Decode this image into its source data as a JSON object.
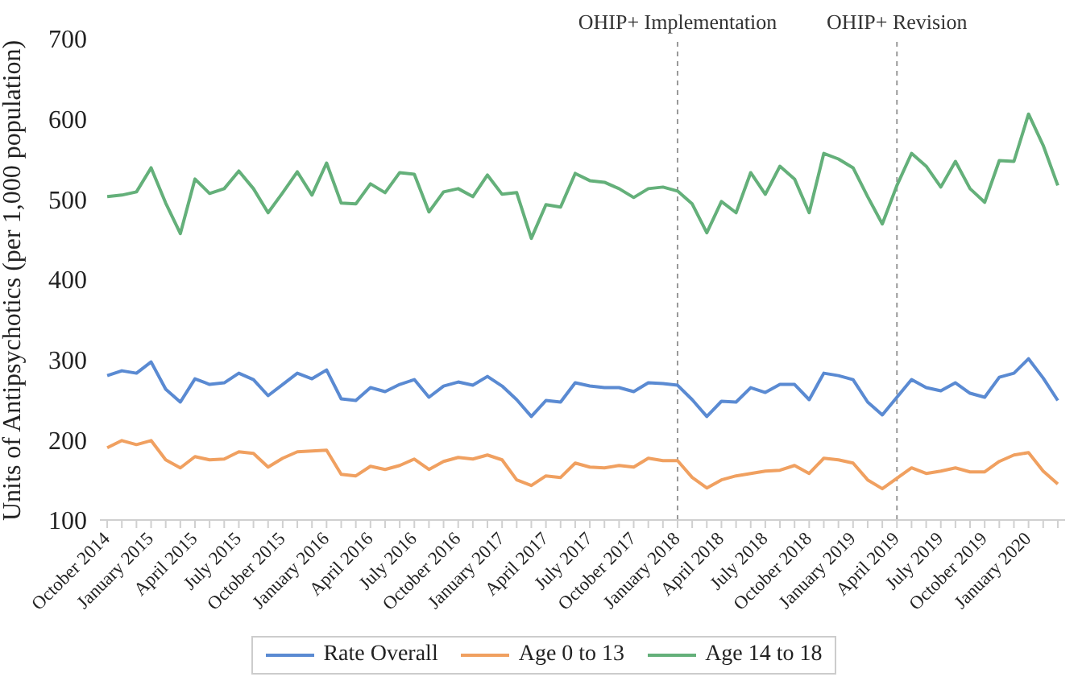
{
  "chart_data": {
    "type": "line",
    "ylabel": "Units of Antipsychotics (per 1,000 population)",
    "categories": [
      "October 2014",
      null,
      null,
      "January 2015",
      null,
      null,
      "April 2015",
      null,
      null,
      "July 2015",
      null,
      null,
      "October 2015",
      null,
      null,
      "January 2016",
      null,
      null,
      "April 2016",
      null,
      null,
      "July 2016",
      null,
      null,
      "October 2016",
      null,
      null,
      "January 2017",
      null,
      null,
      "April 2017",
      null,
      null,
      "July 2017",
      null,
      null,
      "October 2017",
      null,
      null,
      "January 2018",
      null,
      null,
      "April 2018",
      null,
      null,
      "July 2018",
      null,
      null,
      "October 2018",
      null,
      null,
      "January 2019",
      null,
      null,
      "April 2019",
      null,
      null,
      "July 2019",
      null,
      null,
      "October 2019",
      null,
      null,
      "January 2020",
      null,
      null
    ],
    "series": [
      {
        "name": "Rate Overall",
        "color": "#5a8ad2",
        "values": [
          280,
          286,
          283,
          297,
          263,
          247,
          276,
          269,
          271,
          283,
          275,
          255,
          269,
          283,
          276,
          287,
          251,
          249,
          265,
          260,
          269,
          275,
          253,
          267,
          272,
          268,
          279,
          267,
          250,
          229,
          249,
          247,
          271,
          267,
          265,
          265,
          260,
          271,
          270,
          268,
          250,
          229,
          248,
          247,
          265,
          259,
          269,
          269,
          250,
          283,
          280,
          275,
          247,
          231,
          253,
          275,
          265,
          261,
          271,
          258,
          253,
          278,
          283,
          301,
          277,
          249
        ]
      },
      {
        "name": "Age 0 to 13",
        "color": "#f0a060",
        "values": [
          190,
          199,
          194,
          199,
          175,
          165,
          179,
          175,
          176,
          185,
          183,
          166,
          177,
          185,
          186,
          187,
          157,
          155,
          167,
          163,
          168,
          176,
          163,
          173,
          178,
          176,
          181,
          175,
          150,
          143,
          155,
          153,
          171,
          166,
          165,
          168,
          166,
          177,
          174,
          174,
          153,
          140,
          150,
          155,
          158,
          161,
          162,
          168,
          158,
          177,
          175,
          171,
          150,
          139,
          152,
          165,
          158,
          161,
          165,
          160,
          160,
          173,
          181,
          184,
          161,
          145
        ]
      },
      {
        "name": "Age 14 to 18",
        "color": "#64b07a",
        "values": [
          503,
          505,
          509,
          539,
          495,
          457,
          525,
          507,
          513,
          535,
          513,
          483,
          508,
          534,
          505,
          545,
          495,
          494,
          519,
          508,
          533,
          531,
          484,
          509,
          513,
          503,
          530,
          506,
          508,
          451,
          493,
          490,
          532,
          523,
          521,
          513,
          502,
          513,
          515,
          510,
          494,
          458,
          497,
          483,
          533,
          506,
          541,
          525,
          483,
          557,
          550,
          539,
          503,
          469,
          517,
          557,
          541,
          515,
          547,
          513,
          496,
          548,
          547,
          606,
          567,
          517
        ]
      }
    ],
    "ylim": [
      100,
      700
    ],
    "yticks": [
      100,
      200,
      300,
      400,
      500,
      600,
      700
    ],
    "grid": false,
    "legend": "bottom",
    "marker": "none",
    "line_style": "solid",
    "ref_lines": [
      {
        "axis": "x",
        "value": "January 2018",
        "label": "OHIP+ Implementation",
        "color": "#999999",
        "line_style": "dashed"
      },
      {
        "axis": "x",
        "value": "April 2019",
        "label": "OHIP+ Revision",
        "color": "#999999",
        "line_style": "dashed"
      }
    ]
  }
}
